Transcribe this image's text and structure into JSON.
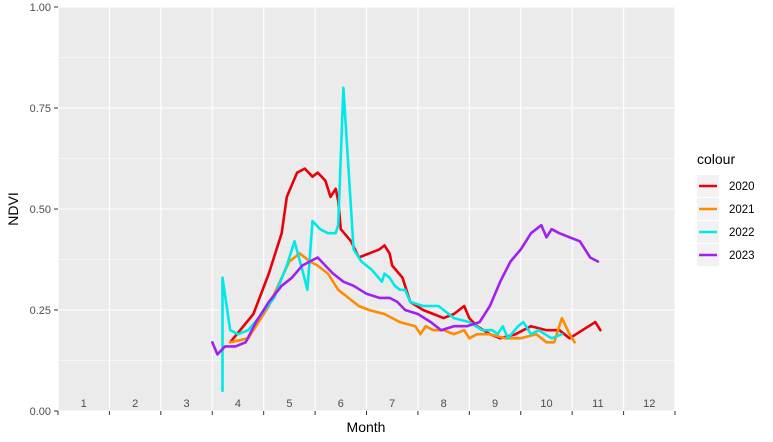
{
  "chart_data": {
    "type": "line",
    "xlabel": "Month",
    "ylabel": "NDVI",
    "xlim": [
      0.5,
      12.5
    ],
    "ylim": [
      0,
      1
    ],
    "x_ticks": [
      "1",
      "2",
      "3",
      "4",
      "5",
      "6",
      "7",
      "8",
      "9",
      "10",
      "11",
      "12"
    ],
    "y_ticks": [
      "0.00",
      "0.25",
      "0.50",
      "0.75",
      "1.00"
    ],
    "y_tick_values": [
      0,
      0.25,
      0.5,
      0.75,
      1.0
    ],
    "grid": true,
    "legend_title": "colour",
    "legend_position": "right",
    "series": [
      {
        "name": "2020",
        "color": "#e8000b",
        "points": [
          [
            3.85,
            0.17
          ],
          [
            4.3,
            0.24
          ],
          [
            4.6,
            0.34
          ],
          [
            4.85,
            0.44
          ],
          [
            4.95,
            0.53
          ],
          [
            5.15,
            0.59
          ],
          [
            5.3,
            0.6
          ],
          [
            5.45,
            0.58
          ],
          [
            5.55,
            0.59
          ],
          [
            5.7,
            0.57
          ],
          [
            5.8,
            0.53
          ],
          [
            5.9,
            0.55
          ],
          [
            5.95,
            0.52
          ],
          [
            6.0,
            0.45
          ],
          [
            6.2,
            0.42
          ],
          [
            6.35,
            0.38
          ],
          [
            6.55,
            0.39
          ],
          [
            6.75,
            0.4
          ],
          [
            6.85,
            0.41
          ],
          [
            6.95,
            0.39
          ],
          [
            7.0,
            0.36
          ],
          [
            7.2,
            0.33
          ],
          [
            7.35,
            0.27
          ],
          [
            7.6,
            0.25
          ],
          [
            7.8,
            0.24
          ],
          [
            8.0,
            0.23
          ],
          [
            8.2,
            0.24
          ],
          [
            8.4,
            0.26
          ],
          [
            8.5,
            0.23
          ],
          [
            8.65,
            0.21
          ],
          [
            8.9,
            0.19
          ],
          [
            9.1,
            0.18
          ],
          [
            9.4,
            0.19
          ],
          [
            9.7,
            0.21
          ],
          [
            10.0,
            0.2
          ],
          [
            10.25,
            0.2
          ],
          [
            10.45,
            0.18
          ],
          [
            10.7,
            0.2
          ],
          [
            10.95,
            0.22
          ],
          [
            11.05,
            0.2
          ]
        ]
      },
      {
        "name": "2021",
        "color": "#ff8c00",
        "points": [
          [
            3.85,
            0.17
          ],
          [
            4.2,
            0.18
          ],
          [
            4.6,
            0.26
          ],
          [
            4.85,
            0.33
          ],
          [
            5.0,
            0.37
          ],
          [
            5.2,
            0.39
          ],
          [
            5.4,
            0.37
          ],
          [
            5.55,
            0.36
          ],
          [
            5.75,
            0.34
          ],
          [
            5.95,
            0.3
          ],
          [
            6.15,
            0.28
          ],
          [
            6.35,
            0.26
          ],
          [
            6.55,
            0.25
          ],
          [
            6.85,
            0.24
          ],
          [
            7.15,
            0.22
          ],
          [
            7.45,
            0.21
          ],
          [
            7.55,
            0.19
          ],
          [
            7.65,
            0.21
          ],
          [
            7.8,
            0.2
          ],
          [
            8.0,
            0.2
          ],
          [
            8.2,
            0.19
          ],
          [
            8.4,
            0.2
          ],
          [
            8.5,
            0.18
          ],
          [
            8.65,
            0.19
          ],
          [
            8.9,
            0.19
          ],
          [
            9.2,
            0.18
          ],
          [
            9.5,
            0.18
          ],
          [
            9.8,
            0.19
          ],
          [
            10.0,
            0.17
          ],
          [
            10.15,
            0.17
          ],
          [
            10.3,
            0.23
          ],
          [
            10.45,
            0.19
          ],
          [
            10.55,
            0.17
          ]
        ]
      },
      {
        "name": "2022",
        "color": "#00e8e8",
        "points": [
          [
            3.7,
            0.05
          ],
          [
            3.7,
            0.33
          ],
          [
            3.85,
            0.2
          ],
          [
            4.0,
            0.19
          ],
          [
            4.2,
            0.2
          ],
          [
            4.4,
            0.23
          ],
          [
            4.7,
            0.28
          ],
          [
            4.95,
            0.36
          ],
          [
            5.1,
            0.42
          ],
          [
            5.25,
            0.35
          ],
          [
            5.35,
            0.3
          ],
          [
            5.45,
            0.47
          ],
          [
            5.6,
            0.45
          ],
          [
            5.75,
            0.44
          ],
          [
            5.9,
            0.44
          ],
          [
            5.95,
            0.46
          ],
          [
            6.05,
            0.8
          ],
          [
            6.15,
            0.6
          ],
          [
            6.25,
            0.4
          ],
          [
            6.4,
            0.37
          ],
          [
            6.6,
            0.35
          ],
          [
            6.8,
            0.32
          ],
          [
            6.85,
            0.34
          ],
          [
            6.95,
            0.33
          ],
          [
            7.05,
            0.31
          ],
          [
            7.15,
            0.3
          ],
          [
            7.25,
            0.3
          ],
          [
            7.35,
            0.27
          ],
          [
            7.6,
            0.26
          ],
          [
            7.9,
            0.26
          ],
          [
            8.2,
            0.23
          ],
          [
            8.5,
            0.22
          ],
          [
            8.75,
            0.2
          ],
          [
            8.95,
            0.2
          ],
          [
            9.05,
            0.19
          ],
          [
            9.15,
            0.21
          ],
          [
            9.25,
            0.18
          ],
          [
            9.45,
            0.21
          ],
          [
            9.55,
            0.22
          ],
          [
            9.7,
            0.19
          ],
          [
            9.85,
            0.2
          ],
          [
            10.1,
            0.18
          ],
          [
            10.3,
            0.19
          ]
        ]
      },
      {
        "name": "2023",
        "color": "#a020f0",
        "points": [
          [
            3.5,
            0.17
          ],
          [
            3.6,
            0.14
          ],
          [
            3.75,
            0.16
          ],
          [
            3.95,
            0.16
          ],
          [
            4.15,
            0.17
          ],
          [
            4.35,
            0.22
          ],
          [
            4.6,
            0.27
          ],
          [
            4.85,
            0.31
          ],
          [
            5.05,
            0.33
          ],
          [
            5.25,
            0.36
          ],
          [
            5.4,
            0.37
          ],
          [
            5.55,
            0.38
          ],
          [
            5.7,
            0.36
          ],
          [
            5.85,
            0.34
          ],
          [
            6.05,
            0.32
          ],
          [
            6.25,
            0.31
          ],
          [
            6.5,
            0.29
          ],
          [
            6.75,
            0.28
          ],
          [
            6.95,
            0.28
          ],
          [
            7.1,
            0.27
          ],
          [
            7.25,
            0.25
          ],
          [
            7.5,
            0.24
          ],
          [
            7.75,
            0.22
          ],
          [
            7.95,
            0.2
          ],
          [
            8.2,
            0.21
          ],
          [
            8.45,
            0.21
          ],
          [
            8.7,
            0.22
          ],
          [
            8.9,
            0.26
          ],
          [
            9.1,
            0.32
          ],
          [
            9.3,
            0.37
          ],
          [
            9.5,
            0.4
          ],
          [
            9.7,
            0.44
          ],
          [
            9.9,
            0.46
          ],
          [
            10.0,
            0.43
          ],
          [
            10.1,
            0.45
          ],
          [
            10.25,
            0.44
          ],
          [
            10.45,
            0.43
          ],
          [
            10.65,
            0.42
          ],
          [
            10.85,
            0.38
          ],
          [
            11.0,
            0.37
          ]
        ]
      }
    ]
  }
}
